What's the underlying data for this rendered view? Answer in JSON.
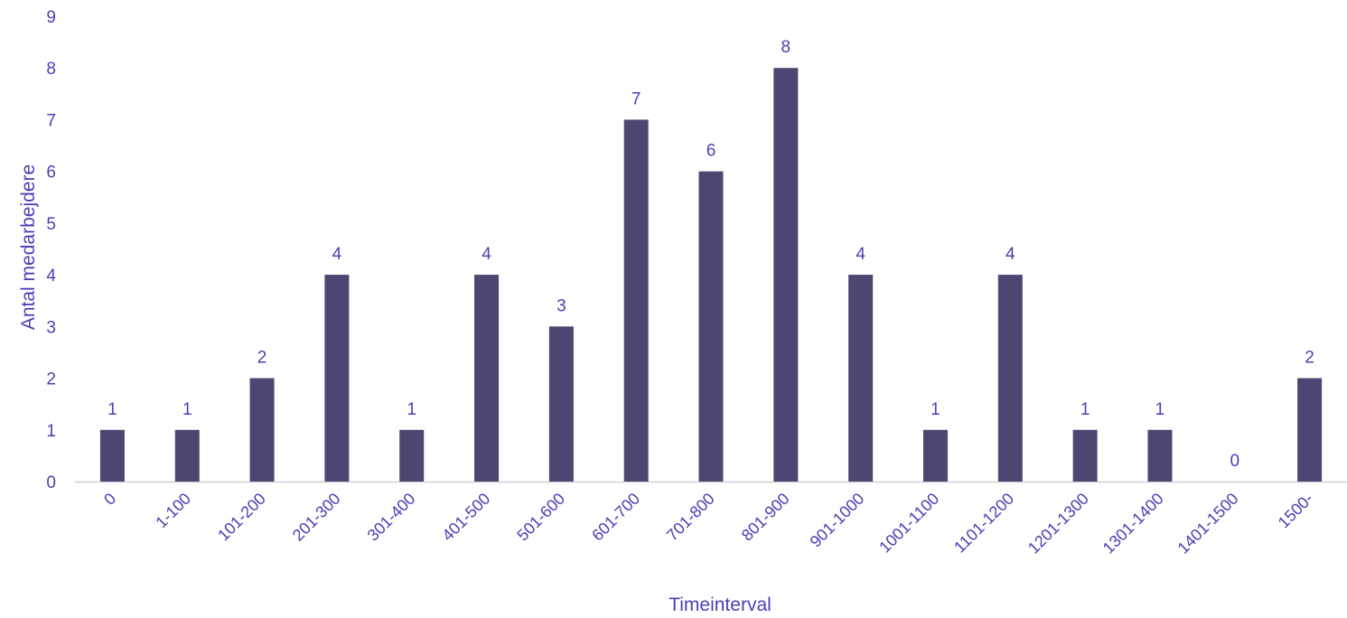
{
  "colors": {
    "bar": "#4b4672",
    "text": "#4b3fb4",
    "axis": "#d0d0d8"
  },
  "chart_data": {
    "type": "bar",
    "title": "",
    "xlabel": "Timeinterval",
    "ylabel": "Antal medarbejdere",
    "ylim": [
      0,
      9
    ],
    "yticks": [
      "0",
      "1",
      "2",
      "3",
      "4",
      "5",
      "6",
      "7",
      "8",
      "9"
    ],
    "grid": false,
    "categories": [
      "0",
      "1-100",
      "101-200",
      "201-300",
      "301-400",
      "401-500",
      "501-600",
      "601-700",
      "701-800",
      "801-900",
      "901-1000",
      "1001-1100",
      "1101-1200",
      "1201-1300",
      "1301-1400",
      "1401-1500",
      "1500-"
    ],
    "values": [
      1,
      1,
      2,
      4,
      1,
      4,
      3,
      7,
      6,
      8,
      4,
      1,
      4,
      1,
      1,
      0,
      2
    ],
    "data_labels": [
      "1",
      "1",
      "2",
      "4",
      "1",
      "4",
      "3",
      "7",
      "6",
      "8",
      "4",
      "1",
      "4",
      "1",
      "1",
      "0",
      "2"
    ]
  }
}
